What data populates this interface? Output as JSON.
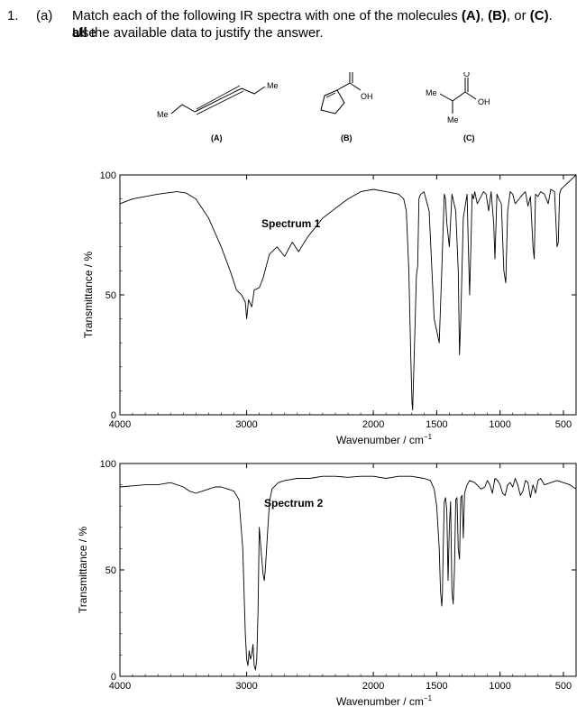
{
  "question": {
    "number": "1.",
    "part": "(a)",
    "line1_pre": "Match each of the following IR spectra with one of the molecules ",
    "line1_A": "(A)",
    "line1_sep1": ", ",
    "line1_B": "(B)",
    "line1_sep2": ", or ",
    "line1_C": "(C)",
    "line1_post": ". Use",
    "line2_bold": "all",
    "line2_rest": " the available data to justify the answer."
  },
  "molecules": [
    {
      "label": "(A)",
      "sub_me1": "Me",
      "sub_me2": "Me"
    },
    {
      "label": "(B)",
      "sub_oh": "OH",
      "sub_o": "O"
    },
    {
      "label": "(C)",
      "sub_me1": "Me",
      "sub_me2": "Me",
      "sub_oh": "OH",
      "sub_o": "O"
    }
  ],
  "chart_data": [
    {
      "type": "line",
      "title": "Spectrum 1",
      "xlabel": "Wavenumber / cm",
      "xlabel_sup": "−1",
      "ylabel": "Transmittance / %",
      "xlim": [
        4000,
        400
      ],
      "ylim": [
        0,
        100
      ],
      "xticks": [
        4000,
        3000,
        2000,
        1500,
        1000,
        500
      ],
      "xtick_labels": [
        "4000",
        "3000",
        "2000",
        "1500",
        "1000",
        "500"
      ],
      "yticks": [
        0,
        50,
        100
      ],
      "ytick_labels": [
        "0",
        "50",
        "100"
      ],
      "grid": false,
      "series": [
        {
          "x": [
            4000,
            3900,
            3700,
            3550,
            3480,
            3400,
            3300,
            3200,
            3130,
            3080,
            3040,
            3010,
            3000,
            2985,
            2960,
            2940,
            2900,
            2870,
            2820,
            2760,
            2700,
            2640,
            2590,
            2520,
            2400,
            2300,
            2200,
            2100,
            2000,
            1900,
            1800,
            1760,
            1740,
            1720,
            1705,
            1695,
            1690,
            1680,
            1660,
            1650,
            1640,
            1635,
            1625,
            1600,
            1560,
            1520,
            1480,
            1460,
            1440,
            1430,
            1420,
            1400,
            1380,
            1350,
            1330,
            1320,
            1310,
            1290,
            1260,
            1250,
            1240,
            1230,
            1220,
            1210,
            1200,
            1180,
            1160,
            1130,
            1110,
            1090,
            1070,
            1050,
            1040,
            1025,
            1010,
            990,
            970,
            955,
            940,
            920,
            900,
            880,
            850,
            820,
            800,
            780,
            760,
            740,
            730,
            720,
            700,
            680,
            650,
            620,
            600,
            570,
            550,
            540,
            530,
            520,
            500,
            480,
            460,
            440,
            420,
            400
          ],
          "y": [
            88,
            90,
            92,
            93,
            92.5,
            90,
            82,
            70,
            60,
            52,
            50,
            47,
            40,
            48,
            45,
            52,
            53,
            57,
            67,
            70,
            66,
            72,
            68,
            74,
            82,
            86,
            90,
            93,
            94,
            93,
            92,
            90,
            85,
            60,
            25,
            5,
            2,
            20,
            58,
            62,
            90,
            91,
            92,
            93,
            85,
            40,
            30,
            60,
            92,
            90,
            80,
            70,
            92,
            85,
            60,
            25,
            40,
            82,
            92,
            70,
            50,
            70,
            92,
            90,
            93,
            88,
            90,
            93,
            92,
            85,
            93,
            80,
            65,
            92,
            90,
            88,
            60,
            55,
            85,
            93,
            92,
            88,
            90,
            92,
            93,
            87,
            91,
            70,
            65,
            92,
            91,
            93,
            92,
            88,
            94,
            93,
            70,
            72,
            92,
            94,
            95,
            96,
            97,
            98,
            99,
            100
          ]
        }
      ]
    },
    {
      "type": "line",
      "title": "Spectrum 2",
      "xlabel": "Wavenumber / cm",
      "xlabel_sup": "−1",
      "ylabel": "Transmittance / %",
      "xlim": [
        4000,
        400
      ],
      "ylim": [
        0,
        100
      ],
      "xticks": [
        4000,
        3000,
        2000,
        1500,
        1000,
        500
      ],
      "xtick_labels": [
        "4000",
        "3000",
        "2000",
        "1500",
        "1000",
        "500"
      ],
      "yticks": [
        0,
        50,
        100
      ],
      "ytick_labels": [
        "0",
        "50",
        "100"
      ],
      "grid": false,
      "series": [
        {
          "x": [
            4000,
            3900,
            3800,
            3700,
            3600,
            3500,
            3450,
            3400,
            3350,
            3300,
            3250,
            3200,
            3150,
            3100,
            3060,
            3030,
            3010,
            3000,
            2990,
            2980,
            2970,
            2960,
            2950,
            2940,
            2930,
            2920,
            2910,
            2900,
            2880,
            2870,
            2860,
            2850,
            2840,
            2820,
            2800,
            2750,
            2700,
            2600,
            2500,
            2400,
            2300,
            2200,
            2100,
            2000,
            1900,
            1800,
            1700,
            1600,
            1550,
            1520,
            1500,
            1480,
            1470,
            1460,
            1455,
            1450,
            1440,
            1430,
            1420,
            1410,
            1400,
            1390,
            1380,
            1370,
            1360,
            1350,
            1340,
            1330,
            1320,
            1310,
            1300,
            1290,
            1280,
            1260,
            1240,
            1200,
            1150,
            1120,
            1100,
            1080,
            1060,
            1040,
            1020,
            1000,
            980,
            960,
            940,
            920,
            900,
            880,
            860,
            840,
            820,
            800,
            780,
            760,
            740,
            720,
            700,
            680,
            650,
            600,
            550,
            500,
            450,
            400
          ],
          "y": [
            89,
            89.5,
            90,
            90,
            91,
            89,
            87,
            86,
            87,
            88,
            89,
            89,
            88,
            87,
            83,
            60,
            20,
            8,
            5,
            12,
            8,
            10,
            15,
            5,
            3,
            8,
            30,
            70,
            55,
            48,
            45,
            52,
            62,
            82,
            88,
            91,
            92,
            93,
            93,
            94,
            94,
            93.5,
            94,
            94,
            93,
            94,
            94,
            93,
            92,
            88,
            80,
            60,
            40,
            33,
            38,
            55,
            82,
            84,
            78,
            45,
            70,
            82,
            40,
            34,
            50,
            83,
            84,
            60,
            55,
            84,
            85,
            65,
            86,
            90,
            92,
            91,
            88,
            89,
            92,
            90,
            86,
            93,
            92,
            90,
            86,
            85,
            90,
            91,
            89,
            93,
            90,
            85,
            87,
            92,
            91,
            84,
            90,
            86,
            92,
            93,
            90,
            91,
            92,
            91,
            90,
            88
          ]
        }
      ]
    }
  ]
}
